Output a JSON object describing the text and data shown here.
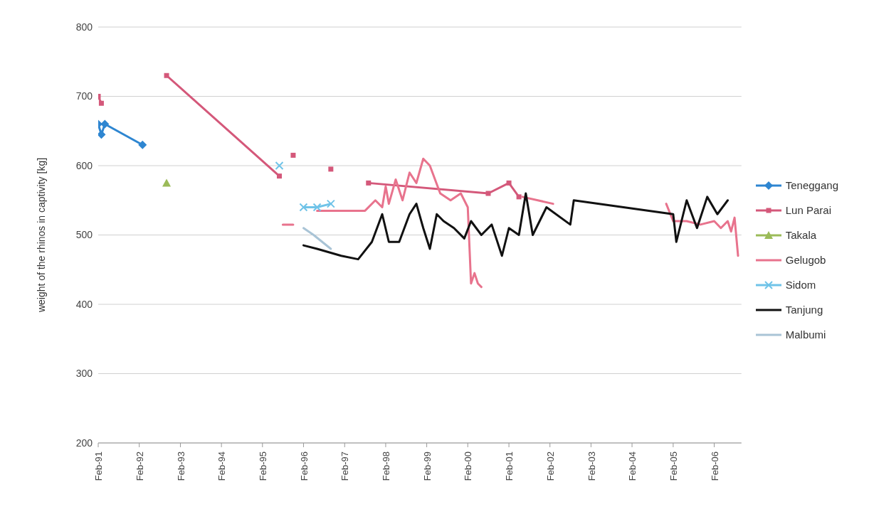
{
  "chart_data": {
    "type": "line",
    "ylabel": "weight of the rhinos in captivity [kg]",
    "ylim": [
      200,
      800
    ],
    "yticks": [
      200,
      300,
      400,
      500,
      600,
      700,
      800
    ],
    "xlim": [
      "1991-02",
      "2006-10"
    ],
    "xticks": [
      {
        "value": "1991-02",
        "label": "Feb-91"
      },
      {
        "value": "1992-02",
        "label": "Feb-92"
      },
      {
        "value": "1993-02",
        "label": "Feb-93"
      },
      {
        "value": "1994-02",
        "label": "Feb-94"
      },
      {
        "value": "1995-02",
        "label": "Feb-95"
      },
      {
        "value": "1996-02",
        "label": "Feb-96"
      },
      {
        "value": "1997-02",
        "label": "Feb-97"
      },
      {
        "value": "1998-02",
        "label": "Feb-98"
      },
      {
        "value": "1999-02",
        "label": "Feb-99"
      },
      {
        "value": "2000-02",
        "label": "Feb-00"
      },
      {
        "value": "2001-02",
        "label": "Feb-01"
      },
      {
        "value": "2002-02",
        "label": "Feb-02"
      },
      {
        "value": "2003-02",
        "label": "Feb-03"
      },
      {
        "value": "2004-02",
        "label": "Feb-04"
      },
      {
        "value": "2005-02",
        "label": "Feb-05"
      },
      {
        "value": "2006-02",
        "label": "Feb-06"
      }
    ],
    "grid": "y",
    "legend": "right",
    "line_style": "solid",
    "series": [
      {
        "name": "Teneggang",
        "color": "#2e86d1",
        "marker": "diamond",
        "x": [
          "1991-02",
          "1991-03",
          "1991-04",
          "1992-03"
        ],
        "values": [
          660,
          645,
          660,
          630
        ]
      },
      {
        "name": "Lun Parai",
        "color": "#d4587a",
        "marker": "square",
        "x": [
          "1991-02",
          "1991-03",
          "1991-06",
          "1992-10",
          "1995-07",
          "1995-09",
          "1995-11",
          "1996-03",
          "1996-10",
          "1997-03",
          "1997-09",
          "2000-08",
          "2001-02",
          "2001-05"
        ],
        "values": [
          700,
          690,
          null,
          730,
          585,
          null,
          615,
          null,
          595,
          null,
          575,
          560,
          575,
          555
        ]
      },
      {
        "name": "Takala",
        "color": "#9bbb59",
        "marker": "triangle",
        "x": [
          "1992-10"
        ],
        "values": [
          575
        ]
      },
      {
        "name": "Gelugob",
        "color": "#e8738d",
        "marker": "none",
        "x": [
          "1995-08",
          "1995-11",
          "1996-02",
          "1996-06",
          "1997-01",
          "1997-08",
          "1997-11",
          "1998-01",
          "1998-02",
          "1998-03",
          "1998-05",
          "1998-07",
          "1998-09",
          "1998-11",
          "1999-01",
          "1999-03",
          "1999-06",
          "1999-09",
          "1999-12",
          "2000-02",
          "2000-03",
          "2000-04",
          "2000-05",
          "2000-06",
          "2000-12",
          "2001-06",
          "2002-03",
          "2003-06",
          "2004-12",
          "2005-02",
          "2005-06",
          "2005-10",
          "2006-02",
          "2006-04",
          "2006-06",
          "2006-07",
          "2006-08",
          "2006-09"
        ],
        "values": [
          515,
          515,
          null,
          535,
          535,
          535,
          550,
          540,
          570,
          545,
          580,
          550,
          590,
          575,
          610,
          600,
          560,
          550,
          560,
          540,
          430,
          445,
          430,
          425,
          null,
          555,
          545,
          null,
          545,
          520,
          520,
          515,
          520,
          510,
          520,
          505,
          525,
          470
        ]
      },
      {
        "name": "Sidom",
        "color": "#6fc3e8",
        "marker": "cross",
        "x": [
          "1995-07",
          "1995-11",
          "1996-02",
          "1996-06",
          "1996-10"
        ],
        "values": [
          600,
          null,
          540,
          540,
          545
        ]
      },
      {
        "name": "Tanjung",
        "color": "#111111",
        "marker": "none",
        "x": [
          "1996-02",
          "1996-06",
          "1997-01",
          "1997-06",
          "1997-10",
          "1998-01",
          "1998-03",
          "1998-06",
          "1998-09",
          "1998-11",
          "1999-01",
          "1999-03",
          "1999-05",
          "1999-07",
          "1999-10",
          "2000-01",
          "2000-03",
          "2000-06",
          "2000-09",
          "2000-12",
          "2001-02",
          "2001-05",
          "2001-07",
          "2001-09",
          "2002-01",
          "2002-08",
          "2002-09",
          "2005-02",
          "2005-03",
          "2005-06",
          "2005-09",
          "2005-12",
          "2006-03",
          "2006-06"
        ],
        "values": [
          485,
          480,
          470,
          465,
          490,
          530,
          490,
          490,
          530,
          545,
          510,
          480,
          530,
          520,
          510,
          495,
          520,
          500,
          515,
          470,
          510,
          500,
          560,
          500,
          540,
          515,
          550,
          530,
          490,
          550,
          510,
          555,
          530,
          550
        ]
      },
      {
        "name": "Malbumi",
        "color": "#a9c4d6",
        "marker": "none",
        "x": [
          "1996-02",
          "1996-05",
          "1996-10"
        ],
        "values": [
          510,
          500,
          480
        ]
      }
    ]
  }
}
